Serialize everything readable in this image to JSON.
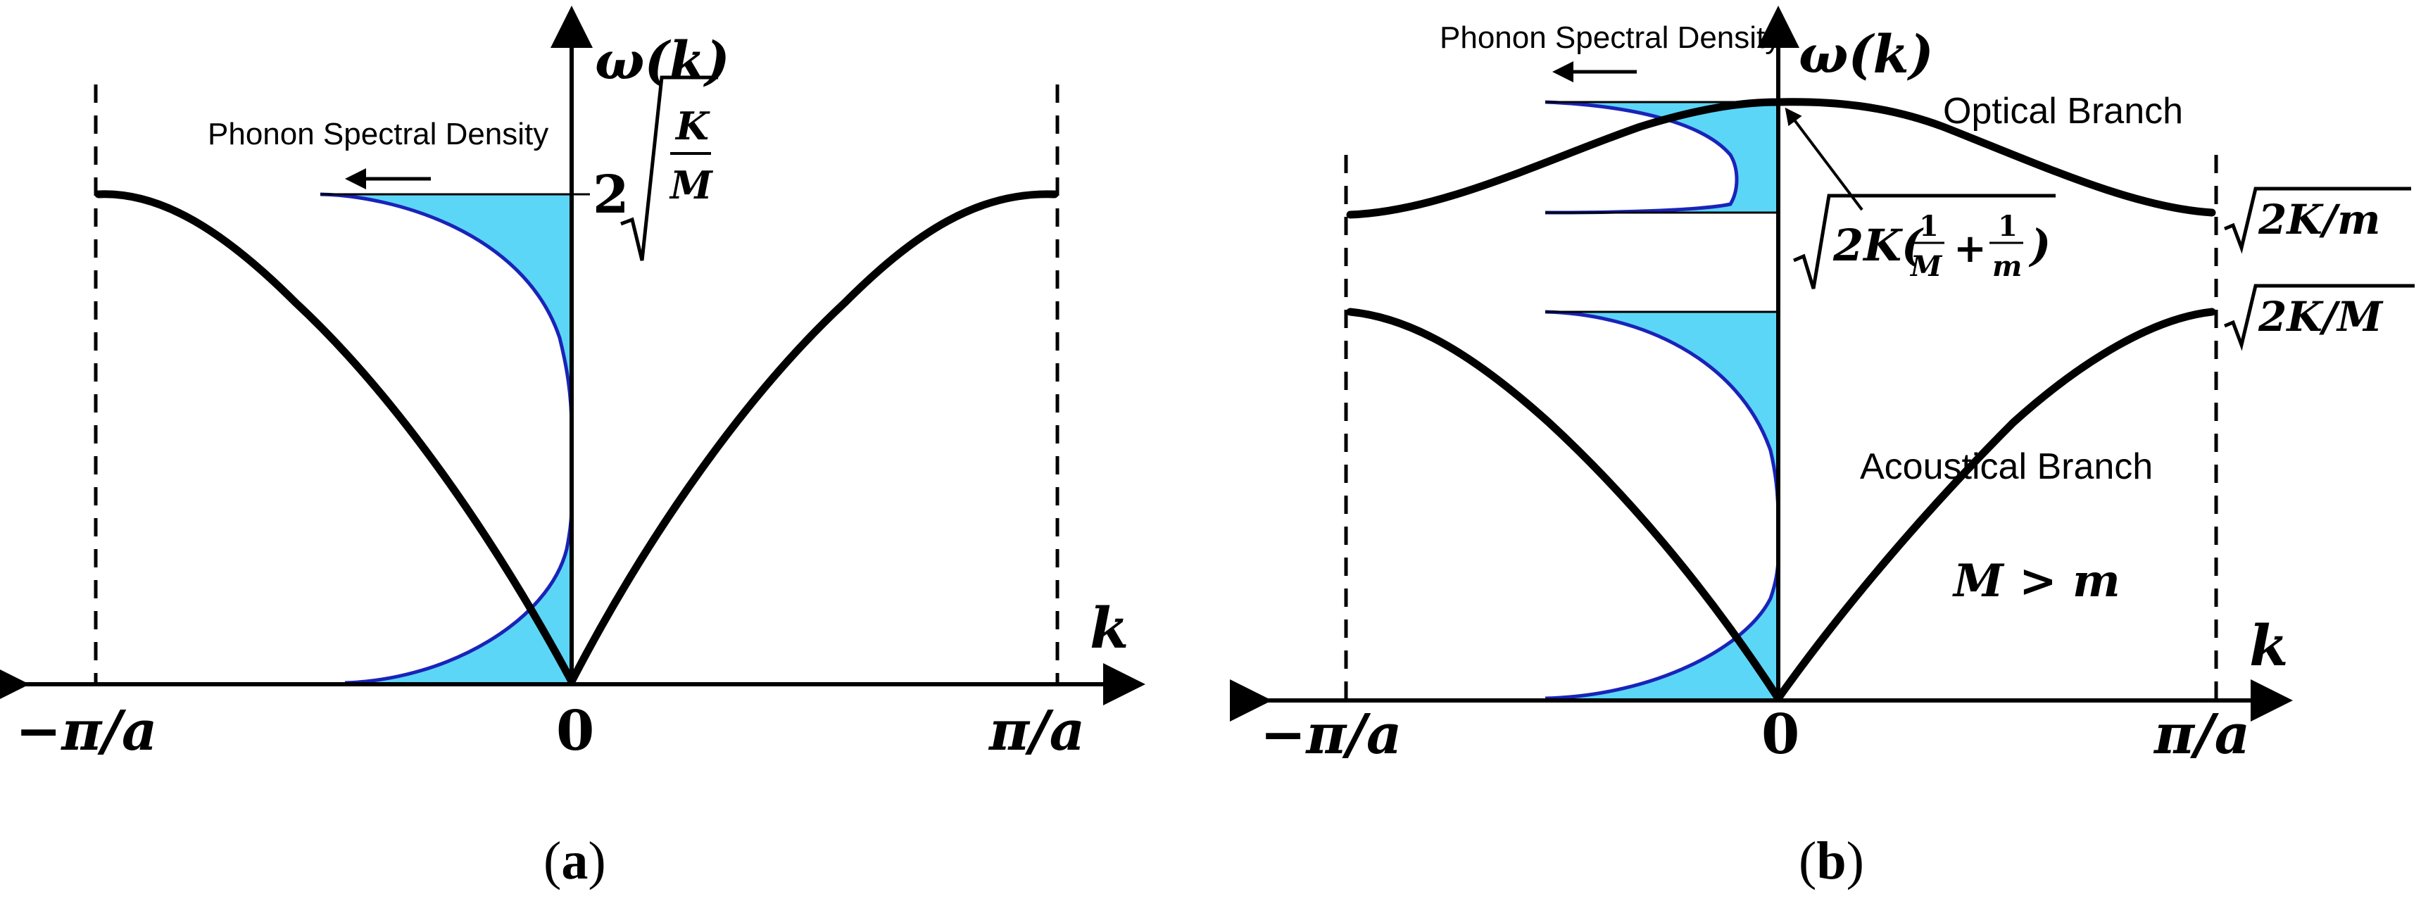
{
  "panel_a": {
    "y_axis_label": "ω(k)",
    "x_axis_label": "k",
    "tick_left": "−π/a",
    "tick_zero": "0",
    "tick_right": "π/a",
    "dos_label": "Phonon Spectral Density",
    "max_freq_label": {
      "prefix": "2",
      "numerator": "K",
      "denominator": "M"
    },
    "caption": {
      "open": "(",
      "letter": "a",
      "close": ")"
    }
  },
  "panel_b": {
    "y_axis_label": "ω(k)",
    "x_axis_label": "k",
    "tick_left": "−π/a",
    "tick_zero": "0",
    "tick_right": "π/a",
    "dos_label": "Phonon Spectral Density",
    "optical_label": "Optical Branch",
    "acoustical_label": "Acoustical Branch",
    "mass_condition": "M > m",
    "optical_top_label": {
      "lead": "2K(",
      "frac1_num": "1",
      "frac1_den": "M",
      "plus": "+",
      "frac2_num": "1",
      "frac2_den": "m",
      "tail": ")"
    },
    "optical_edge_label": "2K/m",
    "acoustic_edge_label": "2K/M",
    "caption": {
      "open": "(",
      "letter": "b",
      "close": ")"
    }
  },
  "colors": {
    "dos_fill": "#5cd6f7",
    "dos_line": "#1a23b8",
    "curve": "#000000"
  }
}
